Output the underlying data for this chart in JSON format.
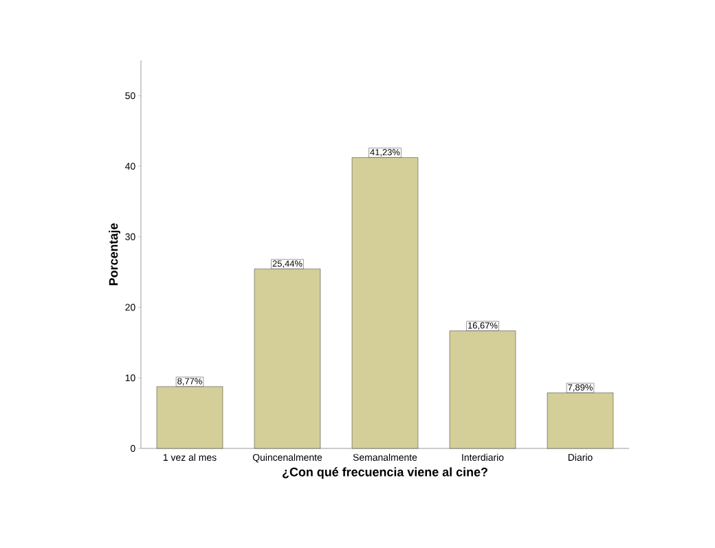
{
  "chart_data": {
    "type": "bar",
    "xlabel": "¿Con qué frecuencia viene al cine?",
    "ylabel": "Porcentaje",
    "categories": [
      "1 vez al mes",
      "Quincenalmente",
      "Semanalmente",
      "Interdiario",
      "Diario"
    ],
    "values": [
      8.77,
      25.44,
      41.23,
      16.67,
      7.89
    ],
    "value_labels": [
      "8,77%",
      "25,44%",
      "41,23%",
      "16,67%",
      "7,89%"
    ],
    "color": "#d4cf98",
    "ylim": [
      0,
      55
    ],
    "yticks": [
      0,
      10,
      20,
      30,
      40,
      50
    ],
    "grid": false
  }
}
